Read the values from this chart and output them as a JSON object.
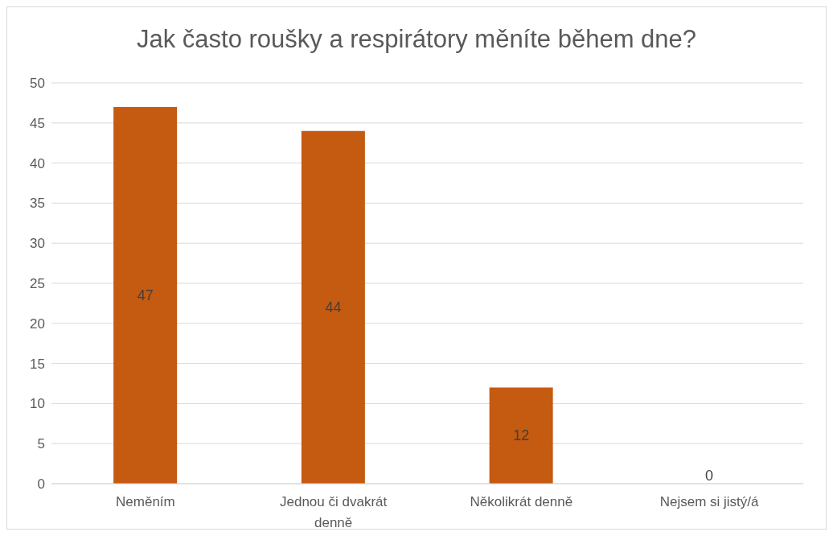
{
  "chart_data": {
    "type": "bar",
    "title": "Jak často roušky a respirátory měníte během dne?",
    "categories": [
      "Neměním",
      "Jednou či dvakrát denně",
      "Několikrát denně",
      "Nejsem si jistý/á"
    ],
    "values": [
      47,
      44,
      12,
      0
    ],
    "color": "#c55a11",
    "ylim": [
      0,
      50
    ],
    "yticks": [
      0,
      5,
      10,
      15,
      20,
      25,
      30,
      35,
      40,
      45,
      50
    ],
    "grid": "y",
    "data_labels": true
  }
}
